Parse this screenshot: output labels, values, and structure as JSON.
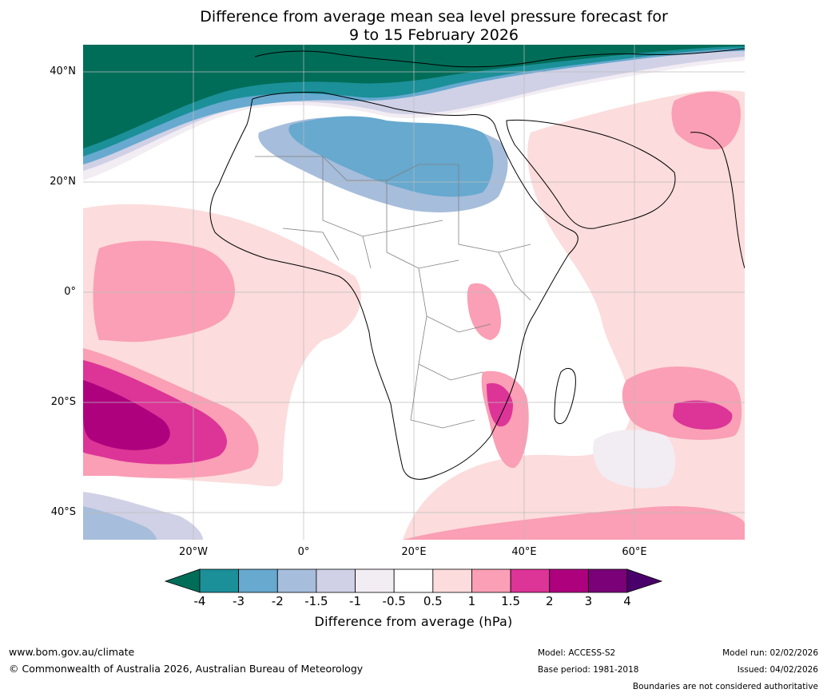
{
  "title": {
    "line1": "Difference from average mean sea level pressure forecast for",
    "line2": "9 to 15 February 2026"
  },
  "axes": {
    "lat_labels": [
      "40°N",
      "20°N",
      "0°",
      "20°S",
      "40°S"
    ],
    "lon_labels": [
      "20°W",
      "0°",
      "20°E",
      "40°E",
      "60°E"
    ]
  },
  "colorbar": {
    "ticks": [
      "-4",
      "-3",
      "-2",
      "-1.5",
      "-1",
      "-0.5",
      "0.5",
      "1",
      "1.5",
      "2",
      "3",
      "4"
    ],
    "colors": [
      "#006d58",
      "#1b9099",
      "#67a9cf",
      "#a6bddb",
      "#d0d1e6",
      "#f2ecf3",
      "#ffffff",
      "#fcdcdc",
      "#fa9fb5",
      "#dd3497",
      "#ae017e",
      "#7a0177",
      "#49006a"
    ],
    "label": "Difference from average (hPa)"
  },
  "map": {
    "region": "Africa",
    "model": "ACCESS-S2"
  },
  "footer": {
    "website": "www.bom.gov.au/climate",
    "copyright": "© Commonwealth of Australia 2026, Australian Bureau of Meteorology",
    "model": "Model: ACCESS-S2",
    "base_period": "Base period: 1981-2018",
    "model_run": "Model run: 02/02/2026",
    "issued": "Issued: 04/02/2026",
    "disclaimer": "Boundaries are not considered authoritative"
  }
}
